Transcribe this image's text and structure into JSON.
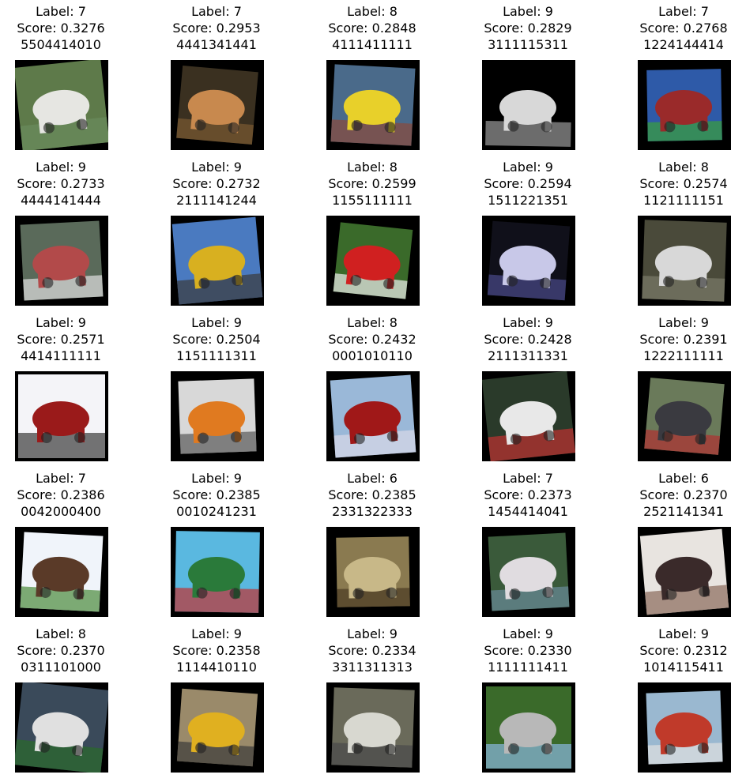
{
  "tiles": [
    {
      "label": "Label: 7",
      "score": "Score: 0.3276",
      "code": "5504414010",
      "subject": "white horse",
      "bg": "#5e7a4a",
      "fg": "#e6e6e2",
      "accent": "#6a8c5c"
    },
    {
      "label": "Label: 7",
      "score": "Score: 0.2953",
      "code": "4441341441",
      "subject": "brown horse",
      "bg": "#3a3020",
      "fg": "#c8894e",
      "accent": "#7a5a32"
    },
    {
      "label": "Label: 8",
      "score": "Score: 0.2848",
      "code": "4111411111",
      "subject": "yellow raft",
      "bg": "#4a6a8a",
      "fg": "#e8d02a",
      "accent": "#8a4a3a"
    },
    {
      "label": "Label: 9",
      "score": "Score: 0.2829",
      "code": "3111115311",
      "subject": "white truck",
      "bg": "#000000",
      "fg": "#d8d8d8",
      "accent": "#9a9a9a"
    },
    {
      "label": "Label: 7",
      "score": "Score: 0.2768",
      "code": "1224144414",
      "subject": "horse painting",
      "bg": "#2e5aa8",
      "fg": "#9a2a2a",
      "accent": "#3aa03a"
    },
    {
      "label": "Label: 9",
      "score": "Score: 0.2733",
      "code": "4444141444",
      "subject": "red truck",
      "bg": "#5a6a5a",
      "fg": "#b24a4a",
      "accent": "#e0e0e0"
    },
    {
      "label": "Label: 9",
      "score": "Score: 0.2732",
      "code": "2111141244",
      "subject": "yellow truck",
      "bg": "#4a7ac0",
      "fg": "#d8b020",
      "accent": "#3a3a3a"
    },
    {
      "label": "Label: 8",
      "score": "Score: 0.2599",
      "code": "1155111111",
      "subject": "red white boat",
      "bg": "#3a6a2a",
      "fg": "#d02020",
      "accent": "#f0f0f0"
    },
    {
      "label": "Label: 9",
      "score": "Score: 0.2594",
      "code": "1511221351",
      "subject": "white truck night",
      "bg": "#10101a",
      "fg": "#c8c8e8",
      "accent": "#4a4a8a"
    },
    {
      "label": "Label: 8",
      "score": "Score: 0.2574",
      "code": "1121111151",
      "subject": "white boat",
      "bg": "#4a4a3a",
      "fg": "#d8d8d8",
      "accent": "#7a7a6a"
    },
    {
      "label": "Label: 9",
      "score": "Score: 0.2571",
      "code": "4414111111",
      "subject": "red truck white",
      "bg": "#f4f4f8",
      "fg": "#9a1a1a",
      "accent": "#3a3a3a"
    },
    {
      "label": "Label: 9",
      "score": "Score: 0.2504",
      "code": "1151111311",
      "subject": "orange truck",
      "bg": "#d8d8d8",
      "fg": "#e07a20",
      "accent": "#5a5a5a"
    },
    {
      "label": "Label: 8",
      "score": "Score: 0.2432",
      "code": "0001010110",
      "subject": "red ship",
      "bg": "#9ab8d8",
      "fg": "#a01818",
      "accent": "#d8d8e8"
    },
    {
      "label": "Label: 9",
      "score": "Score: 0.2428",
      "code": "2111311331",
      "subject": "white box truck",
      "bg": "#2a3a2a",
      "fg": "#e8e8e8",
      "accent": "#c03030"
    },
    {
      "label": "Label: 9",
      "score": "Score: 0.2391",
      "code": "1222111111",
      "subject": "dark truck",
      "bg": "#6a7a5a",
      "fg": "#3a3a40",
      "accent": "#b03030"
    },
    {
      "label": "Label: 7",
      "score": "Score: 0.2386",
      "code": "0042000400",
      "subject": "brown horse sky",
      "bg": "#f0f4fa",
      "fg": "#5a3a28",
      "accent": "#4a8a3a"
    },
    {
      "label": "Label: 9",
      "score": "Score: 0.2385",
      "code": "0010241231",
      "subject": "green truck",
      "bg": "#5ab8e0",
      "fg": "#2a7a3a",
      "accent": "#c03030"
    },
    {
      "label": "Label: 6",
      "score": "Score: 0.2385",
      "code": "2331322333",
      "subject": "frog closeup",
      "bg": "#8a7a50",
      "fg": "#c8b888",
      "accent": "#4a3a22"
    },
    {
      "label": "Label: 7",
      "score": "Score: 0.2373",
      "code": "1454414041",
      "subject": "white horse field",
      "bg": "#3a5a3a",
      "fg": "#e0dce0",
      "accent": "#6a8a9a"
    },
    {
      "label": "Label: 6",
      "score": "Score: 0.2370",
      "code": "2521141341",
      "subject": "dark frog",
      "bg": "#e8e4e0",
      "fg": "#3a2a2a",
      "accent": "#8a6a5a"
    },
    {
      "label": "Label: 8",
      "score": "Score: 0.2370",
      "code": "0311101000",
      "subject": "boat water",
      "bg": "#3a4a5a",
      "fg": "#e0e0e0",
      "accent": "#2a6a2a"
    },
    {
      "label": "Label: 9",
      "score": "Score: 0.2358",
      "code": "1114410110",
      "subject": "yellow loader",
      "bg": "#9a8a6a",
      "fg": "#e0b020",
      "accent": "#3a3a3a"
    },
    {
      "label": "Label: 9",
      "score": "Score: 0.2334",
      "code": "3311311313",
      "subject": "white truck grey",
      "bg": "#6a6a5a",
      "fg": "#d8d8d0",
      "accent": "#4a4a4a"
    },
    {
      "label": "Label: 9",
      "score": "Score: 0.2330",
      "code": "1111111411",
      "subject": "grey truck green",
      "bg": "#3a6a2a",
      "fg": "#b8b8b8",
      "accent": "#8ab8e0"
    },
    {
      "label": "Label: 9",
      "score": "Score: 0.2312",
      "code": "1014115411",
      "subject": "red truck light",
      "bg": "#9ab8d0",
      "fg": "#c03a2a",
      "accent": "#e0e0e0"
    }
  ]
}
